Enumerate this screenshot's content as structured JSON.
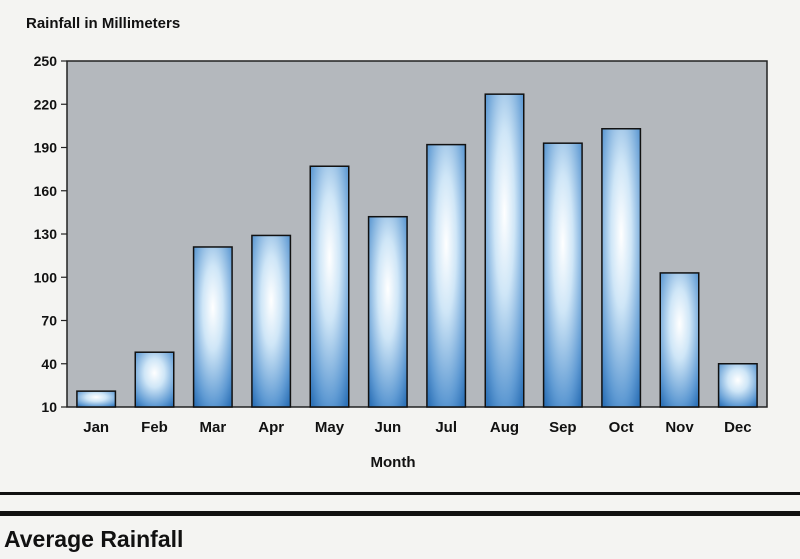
{
  "chart_data": {
    "type": "bar",
    "ylabel": "Rainfall in Millimeters",
    "xlabel": "Month",
    "categories": [
      "Jan",
      "Feb",
      "Mar",
      "Apr",
      "May",
      "Jun",
      "Jul",
      "Aug",
      "Sep",
      "Oct",
      "Nov",
      "Dec"
    ],
    "values": [
      21,
      48,
      121,
      129,
      177,
      142,
      192,
      227,
      193,
      203,
      103,
      40
    ],
    "ylim": [
      10,
      250
    ],
    "yticks": [
      10,
      40,
      70,
      100,
      130,
      160,
      190,
      220,
      250
    ],
    "grid": false,
    "colors": {
      "plot_bg": "#b4b8bd",
      "bar_top": "#ffffff",
      "bar_bottom": "#2f73b8",
      "bar_outline": "#111111"
    }
  },
  "footer": {
    "title": "Average Rainfall"
  }
}
